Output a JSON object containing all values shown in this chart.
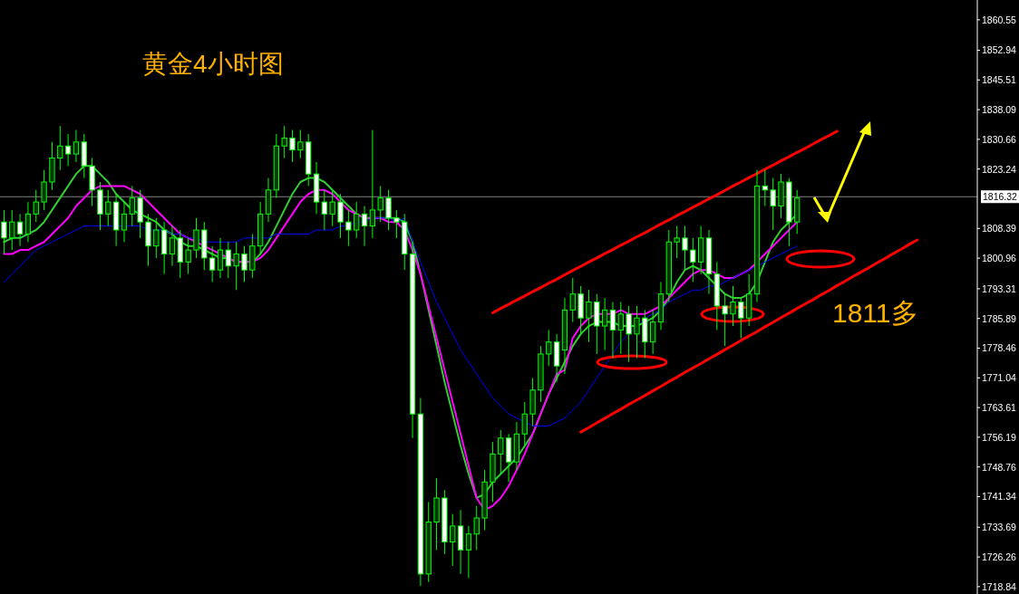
{
  "chart_data": {
    "type": "candlestick",
    "title": "黄金4小时图",
    "annotations": [
      "1811多"
    ],
    "categories": [
      null,
      null,
      null,
      null,
      null,
      null,
      null,
      null,
      null,
      null,
      null,
      null,
      null,
      null,
      null,
      null,
      null,
      null,
      null,
      null,
      null,
      null,
      null,
      null,
      null,
      null,
      null,
      null,
      null,
      null,
      null,
      null,
      null,
      null,
      null,
      null,
      null,
      null,
      null,
      null,
      null,
      null,
      null,
      null,
      null,
      null,
      null,
      null,
      null,
      null,
      null,
      null,
      null,
      null,
      null,
      null,
      null,
      null,
      null,
      null,
      null,
      null,
      null,
      null,
      null,
      null,
      null,
      null,
      null,
      null,
      null,
      null,
      null,
      null,
      null,
      null,
      null,
      null,
      null,
      null,
      null,
      null,
      null,
      null,
      null,
      null,
      null,
      null,
      null,
      null,
      null,
      null,
      null,
      null,
      null,
      null,
      null,
      null,
      null,
      null,
      null,
      null,
      null,
      null,
      null,
      null,
      null,
      null,
      null,
      null,
      null,
      null,
      null,
      null,
      null,
      null,
      null,
      null,
      null,
      null,
      null,
      null
    ],
    "ohlc": [
      [
        1810,
        1813,
        1802,
        1806
      ],
      [
        1806,
        1813,
        1803,
        1810
      ],
      [
        1810,
        1812,
        1804,
        1807
      ],
      [
        1807,
        1815,
        1805,
        1812
      ],
      [
        1812,
        1818,
        1810,
        1815
      ],
      [
        1815,
        1823,
        1813,
        1820
      ],
      [
        1820,
        1830,
        1818,
        1826
      ],
      [
        1826,
        1834,
        1823,
        1829
      ],
      [
        1829,
        1832,
        1824,
        1827
      ],
      [
        1827,
        1833,
        1825,
        1830
      ],
      [
        1830,
        1832,
        1821,
        1824
      ],
      [
        1824,
        1826,
        1814,
        1818
      ],
      [
        1818,
        1820,
        1808,
        1812
      ],
      [
        1812,
        1818,
        1809,
        1815
      ],
      [
        1815,
        1817,
        1804,
        1808
      ],
      [
        1808,
        1815,
        1805,
        1812
      ],
      [
        1812,
        1819,
        1809,
        1816
      ],
      [
        1816,
        1818,
        1806,
        1810
      ],
      [
        1810,
        1812,
        1799,
        1804
      ],
      [
        1804,
        1811,
        1801,
        1808
      ],
      [
        1808,
        1810,
        1797,
        1802
      ],
      [
        1802,
        1809,
        1799,
        1806
      ],
      [
        1806,
        1808,
        1796,
        1800
      ],
      [
        1800,
        1806,
        1797,
        1803
      ],
      [
        1803,
        1811,
        1801,
        1808
      ],
      [
        1808,
        1810,
        1798,
        1801
      ],
      [
        1801,
        1804,
        1795,
        1798
      ],
      [
        1798,
        1806,
        1796,
        1803
      ],
      [
        1803,
        1805,
        1796,
        1799
      ],
      [
        1799,
        1805,
        1793,
        1802
      ],
      [
        1802,
        1804,
        1795,
        1798
      ],
      [
        1798,
        1807,
        1796,
        1804
      ],
      [
        1804,
        1815,
        1802,
        1812
      ],
      [
        1812,
        1821,
        1810,
        1818
      ],
      [
        1818,
        1832,
        1816,
        1829
      ],
      [
        1829,
        1834,
        1826,
        1831
      ],
      [
        1831,
        1833,
        1825,
        1828
      ],
      [
        1828,
        1833,
        1826,
        1830
      ],
      [
        1830,
        1832,
        1819,
        1822
      ],
      [
        1822,
        1825,
        1812,
        1815
      ],
      [
        1815,
        1818,
        1808,
        1812
      ],
      [
        1812,
        1818,
        1809,
        1815
      ],
      [
        1815,
        1817,
        1806,
        1810
      ],
      [
        1810,
        1813,
        1804,
        1808
      ],
      [
        1808,
        1815,
        1806,
        1812
      ],
      [
        1812,
        1814,
        1804,
        1809
      ],
      [
        1809,
        1833,
        1806,
        1813
      ],
      [
        1813,
        1819,
        1810,
        1816
      ],
      [
        1816,
        1818,
        1808,
        1811
      ],
      [
        1811,
        1813,
        1806,
        1810
      ],
      [
        1810,
        1812,
        1798,
        1802
      ],
      [
        1802,
        1805,
        1756,
        1762
      ],
      [
        1762,
        1766,
        1719,
        1722
      ],
      [
        1722,
        1740,
        1720,
        1735
      ],
      [
        1735,
        1746,
        1728,
        1741
      ],
      [
        1741,
        1743,
        1727,
        1730
      ],
      [
        1730,
        1737,
        1724,
        1734
      ],
      [
        1734,
        1738,
        1722,
        1728
      ],
      [
        1728,
        1734,
        1721,
        1732
      ],
      [
        1732,
        1739,
        1728,
        1736
      ],
      [
        1736,
        1748,
        1733,
        1745
      ],
      [
        1745,
        1755,
        1740,
        1752
      ],
      [
        1752,
        1758,
        1747,
        1756
      ],
      [
        1756,
        1757,
        1745,
        1750
      ],
      [
        1750,
        1760,
        1748,
        1757
      ],
      [
        1757,
        1765,
        1754,
        1762
      ],
      [
        1762,
        1771,
        1759,
        1768
      ],
      [
        1768,
        1779,
        1765,
        1777
      ],
      [
        1777,
        1783,
        1774,
        1780
      ],
      [
        1780,
        1782,
        1770,
        1774
      ],
      [
        1778,
        1791,
        1772,
        1788
      ],
      [
        1788,
        1796,
        1785,
        1792
      ],
      [
        1792,
        1794,
        1782,
        1786
      ],
      [
        1786,
        1793,
        1780,
        1790
      ],
      [
        1790,
        1792,
        1777,
        1784
      ],
      [
        1784,
        1791,
        1778,
        1788
      ],
      [
        1788,
        1790,
        1776,
        1783
      ],
      [
        1783,
        1790,
        1777,
        1787
      ],
      [
        1787,
        1789,
        1775,
        1782
      ],
      [
        1782,
        1789,
        1776,
        1786
      ],
      [
        1786,
        1788,
        1776,
        1780
      ],
      [
        1780,
        1788,
        1777,
        1785
      ],
      [
        1785,
        1795,
        1783,
        1792
      ],
      [
        1792,
        1808,
        1790,
        1805
      ],
      [
        1805,
        1809,
        1801,
        1806
      ],
      [
        1806,
        1809,
        1798,
        1803
      ],
      [
        1803,
        1806,
        1795,
        1800
      ],
      [
        1800,
        1809,
        1797,
        1806
      ],
      [
        1806,
        1808,
        1792,
        1797
      ],
      [
        1797,
        1800,
        1783,
        1789
      ],
      [
        1789,
        1792,
        1779,
        1787
      ],
      [
        1787,
        1794,
        1784,
        1790
      ],
      [
        1790,
        1791,
        1781,
        1786
      ],
      [
        1786,
        1797,
        1784,
        1792
      ],
      [
        1792,
        1823,
        1790,
        1819
      ],
      [
        1819,
        1823,
        1814,
        1818
      ],
      [
        1818,
        1821,
        1808,
        1814
      ],
      [
        1814,
        1822,
        1811,
        1820
      ],
      [
        1820,
        1821,
        1804,
        1810
      ],
      [
        1810,
        1818,
        1807,
        1816
      ],
      null,
      null,
      null,
      null,
      null,
      null,
      null,
      null,
      null,
      null,
      null,
      null,
      null,
      null,
      null,
      null,
      null,
      null,
      null,
      null,
      null,
      null
    ],
    "series": [
      {
        "type": "line",
        "color": "#32cd32",
        "values": [
          1805,
          1806,
          1806,
          1807,
          1808,
          1810,
          1813,
          1816,
          1819,
          1822,
          1824,
          1824,
          1822,
          1820,
          1817,
          1815,
          1813,
          1812,
          1811,
          1810,
          1808,
          1807,
          1805,
          1804,
          1804,
          1803,
          1802,
          1801,
          1801,
          1800,
          1800,
          1800,
          1802,
          1805,
          1809,
          1813,
          1817,
          1820,
          1821,
          1821,
          1820,
          1818,
          1816,
          1814,
          1812,
          1811,
          1811,
          1811,
          1811,
          1811,
          1810,
          1805,
          1797,
          1788,
          1779,
          1770,
          1762,
          1754,
          1747,
          1741,
          1742,
          1745,
          1747,
          1749,
          1751,
          1754,
          1757,
          1762,
          1767,
          1771,
          1775,
          1779,
          1782,
          1784,
          1785,
          1785,
          1785,
          1784,
          1784,
          1784,
          1785,
          1786,
          1788,
          1791,
          1795,
          1798,
          1799,
          1798,
          1796,
          1794,
          1792,
          1791,
          1791,
          1792,
          1795,
          1800,
          1805,
          1808,
          1810,
          1812,
          null,
          null,
          null,
          null,
          null,
          null,
          null,
          null,
          null,
          null,
          null,
          null,
          null,
          null,
          null,
          null,
          null,
          null,
          null,
          null,
          null,
          null
        ]
      },
      {
        "type": "line",
        "color": "#ff00ff",
        "values": [
          1802,
          1802,
          1803,
          1803,
          1804,
          1805,
          1807,
          1809,
          1811,
          1814,
          1816,
          1818,
          1819,
          1819,
          1819,
          1819,
          1818,
          1817,
          1815,
          1813,
          1811,
          1809,
          1807,
          1806,
          1805,
          1804,
          1803,
          1802,
          1801,
          1800,
          1800,
          1800,
          1801,
          1803,
          1806,
          1809,
          1812,
          1815,
          1817,
          1818,
          1818,
          1817,
          1815,
          1813,
          1812,
          1811,
          1811,
          1811,
          1810,
          1810,
          1808,
          1803,
          1797,
          1789,
          1781,
          1773,
          1765,
          1757,
          1749,
          1741,
          1738,
          1739,
          1741,
          1744,
          1748,
          1752,
          1757,
          1762,
          1767,
          1772,
          1773,
          1781,
          1784,
          1786,
          1787,
          1787,
          1787,
          1788,
          1787,
          1787,
          1787,
          1788,
          1789,
          1791,
          1793,
          1795,
          1797,
          1798,
          1798,
          1797,
          1796,
          1796,
          1797,
          1798,
          1800,
          1802,
          1804,
          1806,
          1808,
          1810,
          null,
          null,
          null,
          null,
          null,
          null,
          null,
          null,
          null,
          null,
          null,
          null,
          null,
          null,
          null,
          null,
          null,
          null,
          null,
          null,
          null,
          null
        ]
      },
      {
        "type": "line",
        "color": "#0000ff",
        "values": [
          1795,
          1797,
          1799,
          1801,
          1803,
          1804,
          1805,
          1806,
          1807,
          1808,
          1809,
          1809,
          1809,
          1809,
          1809,
          1809,
          1809,
          1809,
          1808,
          1808,
          1808,
          1807,
          1807,
          1806,
          1806,
          1805,
          1805,
          1805,
          1805,
          1805,
          1806,
          1806,
          1806,
          1806,
          1807,
          1807,
          1807,
          1807,
          1807,
          1808,
          1808,
          1808,
          1809,
          1809,
          1810,
          1810,
          1811,
          1811,
          1811,
          1810,
          1811,
          1805,
          1800,
          1795,
          1790,
          1786,
          1782,
          1778,
          1775,
          1772,
          1769,
          1766,
          1764,
          1762,
          1761,
          1760,
          1759,
          1759,
          1759,
          1760,
          1761,
          1763,
          1765,
          1768,
          1771,
          1774,
          1777,
          1780,
          1782,
          1784,
          1786,
          1787,
          1788,
          1790,
          1791,
          1792,
          1793,
          1793,
          1794,
          1794,
          1795,
          1796,
          1797,
          1798,
          1799,
          1800,
          1801,
          1802,
          1803,
          1804,
          null,
          null,
          null,
          null,
          null,
          null,
          null,
          null,
          null,
          null,
          null,
          null,
          null,
          null,
          null,
          null,
          null,
          null,
          null,
          null,
          null,
          null
        ]
      },
      {
        "type": "line",
        "color": "#ff0000",
        "values": [
          null,
          null,
          null,
          null,
          null,
          null,
          null,
          null,
          null,
          null,
          null,
          null,
          null,
          null,
          null,
          null,
          null,
          null,
          null,
          null,
          null,
          null,
          null,
          null,
          null,
          null,
          null,
          null,
          null,
          null,
          null,
          null,
          null,
          null,
          null,
          null,
          null,
          null,
          null,
          null,
          null,
          null,
          null,
          null,
          null,
          null,
          null,
          null,
          null,
          null,
          null,
          null,
          null,
          null,
          null,
          null,
          null,
          null,
          null,
          null,
          null,
          1787.3,
          1788.4,
          1789.4,
          1790.5,
          1791.5,
          1792.6,
          1793.6,
          1794.7,
          1795.7,
          1796.8,
          1797.9,
          1798.9,
          1800.0,
          1801.0,
          1802.1,
          1803.1,
          1804.2,
          1805.2,
          1806.3,
          1807.3,
          1808.4,
          1809.5,
          1810.5,
          1811.6,
          1812.6,
          1813.7,
          1814.7,
          1815.8,
          1816.8,
          1817.9,
          1819.0,
          1820.0,
          1821.1,
          1822.1,
          1823.2,
          1824.2,
          1825.3,
          1826.3,
          1827.4,
          1828.4,
          1829.5,
          1830.6,
          1831.6,
          1832.7,
          null,
          null,
          null,
          null,
          null,
          null,
          null,
          null,
          null,
          null,
          null,
          null,
          null,
          null,
          null,
          null,
          null
        ]
      },
      {
        "type": "line",
        "color": "#ff0000",
        "values": [
          null,
          null,
          null,
          null,
          null,
          null,
          null,
          null,
          null,
          null,
          null,
          null,
          null,
          null,
          null,
          null,
          null,
          null,
          null,
          null,
          null,
          null,
          null,
          null,
          null,
          null,
          null,
          null,
          null,
          null,
          null,
          null,
          null,
          null,
          null,
          null,
          null,
          null,
          null,
          null,
          null,
          null,
          null,
          null,
          null,
          null,
          null,
          null,
          null,
          null,
          null,
          null,
          null,
          null,
          null,
          null,
          null,
          null,
          null,
          null,
          null,
          null,
          null,
          null,
          null,
          null,
          null,
          null,
          null,
          null,
          null,
          null,
          1757.5,
          1758.6,
          1759.8,
          1760.9,
          1762.1,
          1763.2,
          1764.4,
          1765.5,
          1766.6,
          1767.8,
          1768.9,
          1770.1,
          1771.2,
          1772.4,
          1773.5,
          1774.6,
          1775.8,
          1776.9,
          1778.1,
          1779.2,
          1780.4,
          1781.5,
          1782.6,
          1783.8,
          1784.9,
          1786.1,
          1787.2,
          1788.4,
          1789.5,
          1790.6,
          1791.8,
          1792.9,
          1794.1,
          1795.2,
          1796.4,
          1797.5,
          1798.6,
          1799.8,
          1800.9,
          1802.1,
          1803.2,
          1804.4,
          1805.5,
          null,
          null,
          null,
          null,
          null,
          null,
          null
        ]
      }
    ],
    "ylim": [
      1717.0,
      1865.5
    ],
    "yticks": [
      1860.55,
      1852.94,
      1845.51,
      1838.09,
      1830.66,
      1823.24,
      1808.39,
      1800.96,
      1793.31,
      1785.89,
      1778.46,
      1771.04,
      1763.61,
      1756.19,
      1748.76,
      1741.34,
      1733.69,
      1726.26,
      1718.84
    ],
    "tick_labels": "y",
    "ref_lines": [
      {
        "axis": "y",
        "value": 1816.32,
        "label": "1816.32",
        "color": "#808080"
      }
    ]
  }
}
